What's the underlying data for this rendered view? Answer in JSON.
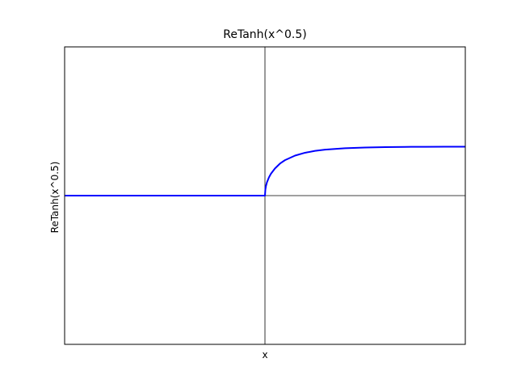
{
  "chart_data": {
    "type": "line",
    "title": "ReTanh(x^0.5)",
    "xlabel": "x",
    "ylabel": "ReTanh(x^0.5)",
    "xlim": [
      -10,
      10
    ],
    "ylim": [
      -1,
      1
    ],
    "grid": false,
    "zero_lines": true,
    "ticks_visible": false,
    "series": [
      {
        "color": "#0000ff",
        "x": [
          -10,
          -8,
          -6,
          -4,
          -2,
          0,
          0.02,
          0.05,
          0.1,
          0.2,
          0.3,
          0.5,
          0.75,
          1,
          1.5,
          2,
          2.5,
          3,
          4,
          5,
          6,
          7,
          8,
          9,
          10
        ],
        "y": [
          0,
          0,
          0,
          0,
          0,
          0,
          0.0411,
          0.0643,
          0.0895,
          0.1232,
          0.1473,
          0.1828,
          0.2155,
          0.2384,
          0.2691,
          0.2882,
          0.3007,
          0.309,
          0.3188,
          0.3237,
          0.3262,
          0.3276,
          0.3283,
          0.3287,
          0.329
        ]
      }
    ]
  }
}
